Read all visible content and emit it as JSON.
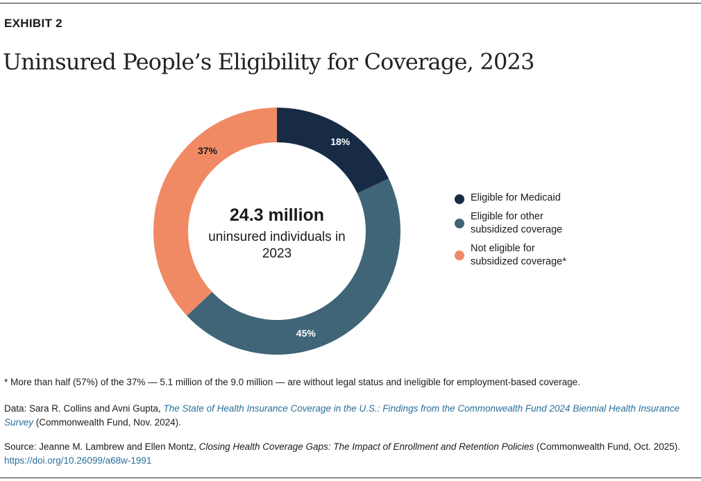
{
  "exhibit": "EXHIBIT 2",
  "chart_data": {
    "type": "pie",
    "title": "Uninsured People’s Eligibility for Coverage, 2023",
    "categories": [
      "Eligible for Medicaid",
      "Eligible for other subsidized coverage",
      "Not eligible for subsidized coverage*"
    ],
    "values": [
      18,
      45,
      37
    ],
    "labels": [
      "18%",
      "45%",
      "37%"
    ],
    "colors": [
      "#172b45",
      "#3f6577",
      "#f08a65"
    ],
    "label_colors": [
      "#ffffff",
      "#ffffff",
      "#1a1a1a"
    ],
    "donut": true,
    "center_value": "24.3 million",
    "center_label": "uninsured individuals in 2023",
    "legend_position": "right"
  },
  "footnote": "* More than half (57%) of the 37% — 5.1 million of the 9.0 million — are without legal status and ineligible for employment-based coverage.",
  "data_note": {
    "prefix": "Data: Sara R. Collins and Avni Gupta, ",
    "link_title": "The State of Health Insurance Coverage in the U.S.: Findings from the Commonwealth Fund 2024 Biennial Health Insurance Survey",
    "suffix": " (Commonwealth Fund, Nov. 2024)."
  },
  "source_note": {
    "prefix": "Source: Jeanne M. Lambrew and Ellen Montz, ",
    "title": "Closing Health Coverage Gaps: The Impact of Enrollment and Retention Policies",
    "suffix": " (Commonwealth Fund, Oct. 2025). ",
    "doi": "https://doi.org/10.26099/a68w-1991"
  }
}
